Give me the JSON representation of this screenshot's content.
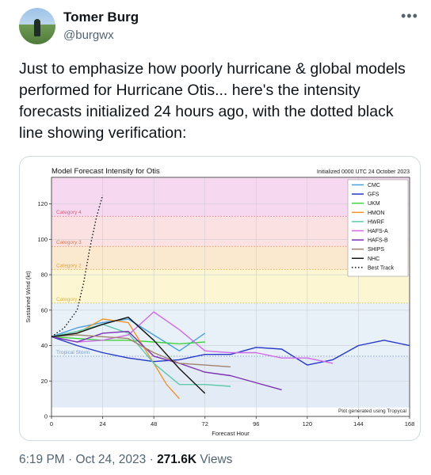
{
  "author": {
    "name": "Tomer Burg",
    "handle": "@burgwx",
    "avatar": "avatar-photo"
  },
  "menu_icon": "more-icon",
  "tweet": {
    "text": "Just to emphasize how poorly hurricane & global models performed for Hurricane Otis... here's the intensity forecasts initialized 24 hours ago, with the dotted black line showing verification:"
  },
  "meta": {
    "time": "6:19 PM",
    "sep1": " · ",
    "date": "Oct 24, 2023",
    "sep2": " · ",
    "views_count": "271.6K",
    "views_label": " Views"
  },
  "chart_data": {
    "type": "line",
    "title": "Model Forecast Intensity for Otis",
    "subtitle": "Initialized 0000 UTC 24 October 2023",
    "xlabel": "Forecast Hour",
    "ylabel": "Sustained Wind (kt)",
    "footer": "Plot generated using Tropycal",
    "xlim": [
      0,
      168
    ],
    "ylim": [
      0,
      135
    ],
    "xticks": [
      0,
      24,
      48,
      72,
      96,
      120,
      144,
      168
    ],
    "yticks": [
      0,
      20,
      40,
      60,
      80,
      100,
      120
    ],
    "grid": true,
    "legend_position": "top-right",
    "bands": [
      {
        "from": 0,
        "to": 5,
        "color": "#ffffff"
      },
      {
        "from": 5,
        "to": 34,
        "color": "#e3ecf6"
      },
      {
        "from": 34,
        "to": 64,
        "color": "#e9f1f8"
      },
      {
        "from": 64,
        "to": 83,
        "color": "#fcf6d2"
      },
      {
        "from": 83,
        "to": 96,
        "color": "#fbe9cf"
      },
      {
        "from": 96,
        "to": 113,
        "color": "#fbe1e1"
      },
      {
        "from": 113,
        "to": 137,
        "color": "#f6d9f0"
      },
      {
        "from": 137,
        "to": 140,
        "color": "#f3dcf3"
      }
    ],
    "thresholds": [
      {
        "value": 34,
        "label": "Tropical Storm",
        "color": "#7a9cc6"
      },
      {
        "value": 64,
        "label": "Category 1",
        "color": "#d9b84a"
      },
      {
        "value": 83,
        "label": "Category 2",
        "color": "#e0a53e"
      },
      {
        "value": 96,
        "label": "Category 3",
        "color": "#e0784a"
      },
      {
        "value": 113,
        "label": "Category 4",
        "color": "#d9607a"
      }
    ],
    "series": [
      {
        "name": "CMC",
        "color": "#4a9fe0",
        "dash": "",
        "x": [
          0,
          12,
          24,
          36,
          48,
          60,
          72
        ],
        "y": [
          45,
          50,
          53,
          55,
          46,
          37,
          47
        ]
      },
      {
        "name": "GFS",
        "color": "#2438c8",
        "dash": "",
        "x": [
          0,
          12,
          24,
          36,
          48,
          60,
          72,
          84,
          96,
          108,
          120,
          132,
          144,
          156,
          168
        ],
        "y": [
          45,
          40,
          36,
          33,
          31,
          32,
          35,
          35,
          39,
          38,
          29,
          32,
          40,
          43,
          40
        ]
      },
      {
        "name": "UKM",
        "color": "#3ed43e",
        "dash": "",
        "x": [
          0,
          12,
          24,
          36,
          48,
          60,
          72
        ],
        "y": [
          45,
          44,
          43,
          43,
          42,
          41,
          42
        ]
      },
      {
        "name": "HMON",
        "color": "#f0942a",
        "dash": "",
        "x": [
          0,
          12,
          24,
          36,
          48,
          54,
          60
        ],
        "y": [
          45,
          47,
          55,
          53,
          30,
          18,
          10
        ]
      },
      {
        "name": "HWRF",
        "color": "#5ec8a8",
        "dash": "",
        "x": [
          0,
          12,
          24,
          36,
          48,
          60,
          72,
          84
        ],
        "y": [
          45,
          48,
          52,
          47,
          30,
          18,
          18,
          17
        ]
      },
      {
        "name": "HAFS-A",
        "color": "#cf6ae6",
        "dash": "",
        "x": [
          0,
          12,
          24,
          36,
          48,
          60,
          72,
          84,
          96,
          108,
          120,
          132
        ],
        "y": [
          45,
          42,
          43,
          46,
          59,
          49,
          37,
          36,
          36,
          33,
          33,
          30
        ]
      },
      {
        "name": "HAFS-B",
        "color": "#7a2fb0",
        "dash": "",
        "x": [
          0,
          12,
          24,
          36,
          48,
          60,
          72,
          84,
          96,
          108
        ],
        "y": [
          45,
          42,
          47,
          48,
          34,
          30,
          25,
          23,
          19,
          15
        ]
      },
      {
        "name": "SHIPS",
        "color": "#a0826c",
        "dash": "",
        "x": [
          0,
          12,
          24,
          36,
          48,
          60,
          72,
          84
        ],
        "y": [
          45,
          46,
          45,
          44,
          36,
          30,
          29,
          28
        ]
      },
      {
        "name": "NHC",
        "color": "#111111",
        "dash": "",
        "x": [
          0,
          12,
          24,
          36,
          48,
          60,
          72
        ],
        "y": [
          45,
          47,
          52,
          56,
          43,
          27,
          13
        ]
      },
      {
        "name": "Best Track",
        "color": "#111111",
        "dash": "1.5 2.5",
        "x": [
          0,
          6,
          12,
          15,
          18,
          21,
          24
        ],
        "y": [
          45,
          50,
          60,
          75,
          95,
          112,
          125
        ]
      }
    ]
  }
}
